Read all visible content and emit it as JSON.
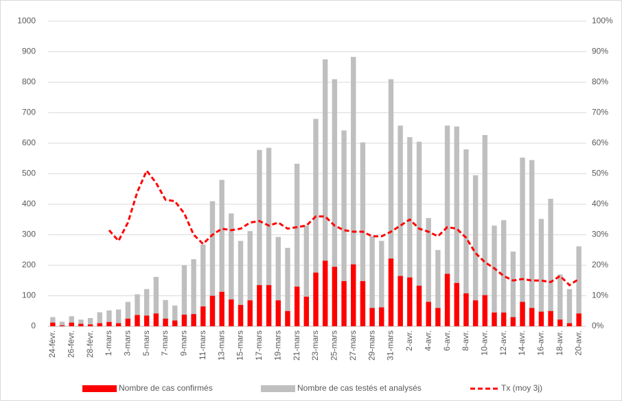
{
  "chart_data": {
    "type": "bar",
    "categories": [
      "24-févr.",
      null,
      "26-févr.",
      null,
      "28-févr.",
      null,
      "1-mars",
      null,
      "3-mars",
      null,
      "5-mars",
      null,
      "7-mars",
      null,
      "9-mars",
      null,
      "11-mars",
      null,
      "13-mars",
      null,
      "15-mars",
      null,
      "17-mars",
      null,
      "19-mars",
      null,
      "21-mars",
      null,
      "23-mars",
      null,
      "25-mars",
      null,
      "27-mars",
      null,
      "29-mars",
      null,
      "31-mars",
      null,
      "2-avr.",
      null,
      "4-avr.",
      null,
      "6-avr.",
      null,
      "8-avr.",
      null,
      "10-avr.",
      null,
      "12-avr.",
      null,
      "14-avr.",
      null,
      "16-avr.",
      null,
      "18-avr.",
      null,
      "20-avr."
    ],
    "series": [
      {
        "name": "Nombre de cas testés et analysés",
        "type": "bar",
        "color": "#bfbfbf",
        "values": [
          30,
          15,
          33,
          22,
          27,
          46,
          52,
          55,
          80,
          105,
          122,
          162,
          86,
          68,
          200,
          220,
          268,
          410,
          480,
          370,
          280,
          312,
          578,
          585,
          293,
          257,
          533,
          330,
          680,
          875,
          810,
          642,
          883,
          603,
          295,
          280,
          810,
          658,
          620,
          605,
          355,
          250,
          658,
          655,
          580,
          495,
          627,
          330,
          348,
          245,
          553,
          545,
          352,
          418,
          170,
          122,
          262
        ]
      },
      {
        "name": "Nombre de cas confirmés",
        "type": "bar",
        "color": "#ff0000",
        "values": [
          12,
          3,
          12,
          8,
          6,
          10,
          14,
          10,
          25,
          37,
          35,
          42,
          25,
          19,
          38,
          40,
          65,
          100,
          113,
          88,
          70,
          85,
          135,
          135,
          85,
          50,
          130,
          97,
          176,
          215,
          195,
          148,
          203,
          148,
          60,
          62,
          222,
          165,
          160,
          133,
          80,
          60,
          172,
          142,
          108,
          85,
          102,
          45,
          45,
          30,
          80,
          60,
          48,
          50,
          22,
          10,
          42
        ]
      },
      {
        "name": "Tx (moy 3j)",
        "type": "line",
        "axis": "y2",
        "color": "#ff0000",
        "dashed": true,
        "values": [
          null,
          null,
          null,
          null,
          null,
          null,
          31.5,
          28,
          34,
          44,
          51,
          47,
          41.5,
          41,
          37,
          30,
          27,
          30,
          32,
          31.5,
          32,
          34,
          34.5,
          33,
          34,
          32,
          32.5,
          33,
          36,
          36,
          33,
          31.5,
          31,
          31,
          29.5,
          29.5,
          31,
          33,
          35,
          32,
          31,
          29.5,
          32.5,
          32,
          29,
          24,
          21,
          19,
          16.5,
          15,
          15.5,
          15,
          15,
          14.5,
          16.5,
          13.5,
          15.5
        ]
      }
    ],
    "legend_order": [
      1,
      0,
      2
    ],
    "ylim": [
      0,
      1000
    ],
    "yticks": [
      0,
      100,
      200,
      300,
      400,
      500,
      600,
      700,
      800,
      900,
      1000
    ],
    "y2lim": [
      0,
      100
    ],
    "y2ticks": [
      {
        "value": 0,
        "label": "0%"
      },
      {
        "value": 10,
        "label": "10%"
      },
      {
        "value": 20,
        "label": "20%"
      },
      {
        "value": 30,
        "label": "30%"
      },
      {
        "value": 40,
        "label": "40%"
      },
      {
        "value": 50,
        "label": "50%"
      },
      {
        "value": 60,
        "label": "60%"
      },
      {
        "value": 70,
        "label": "70%"
      },
      {
        "value": 80,
        "label": "80%"
      },
      {
        "value": 90,
        "label": "90%"
      },
      {
        "value": 100,
        "label": "100%"
      }
    ],
    "grid": true
  }
}
